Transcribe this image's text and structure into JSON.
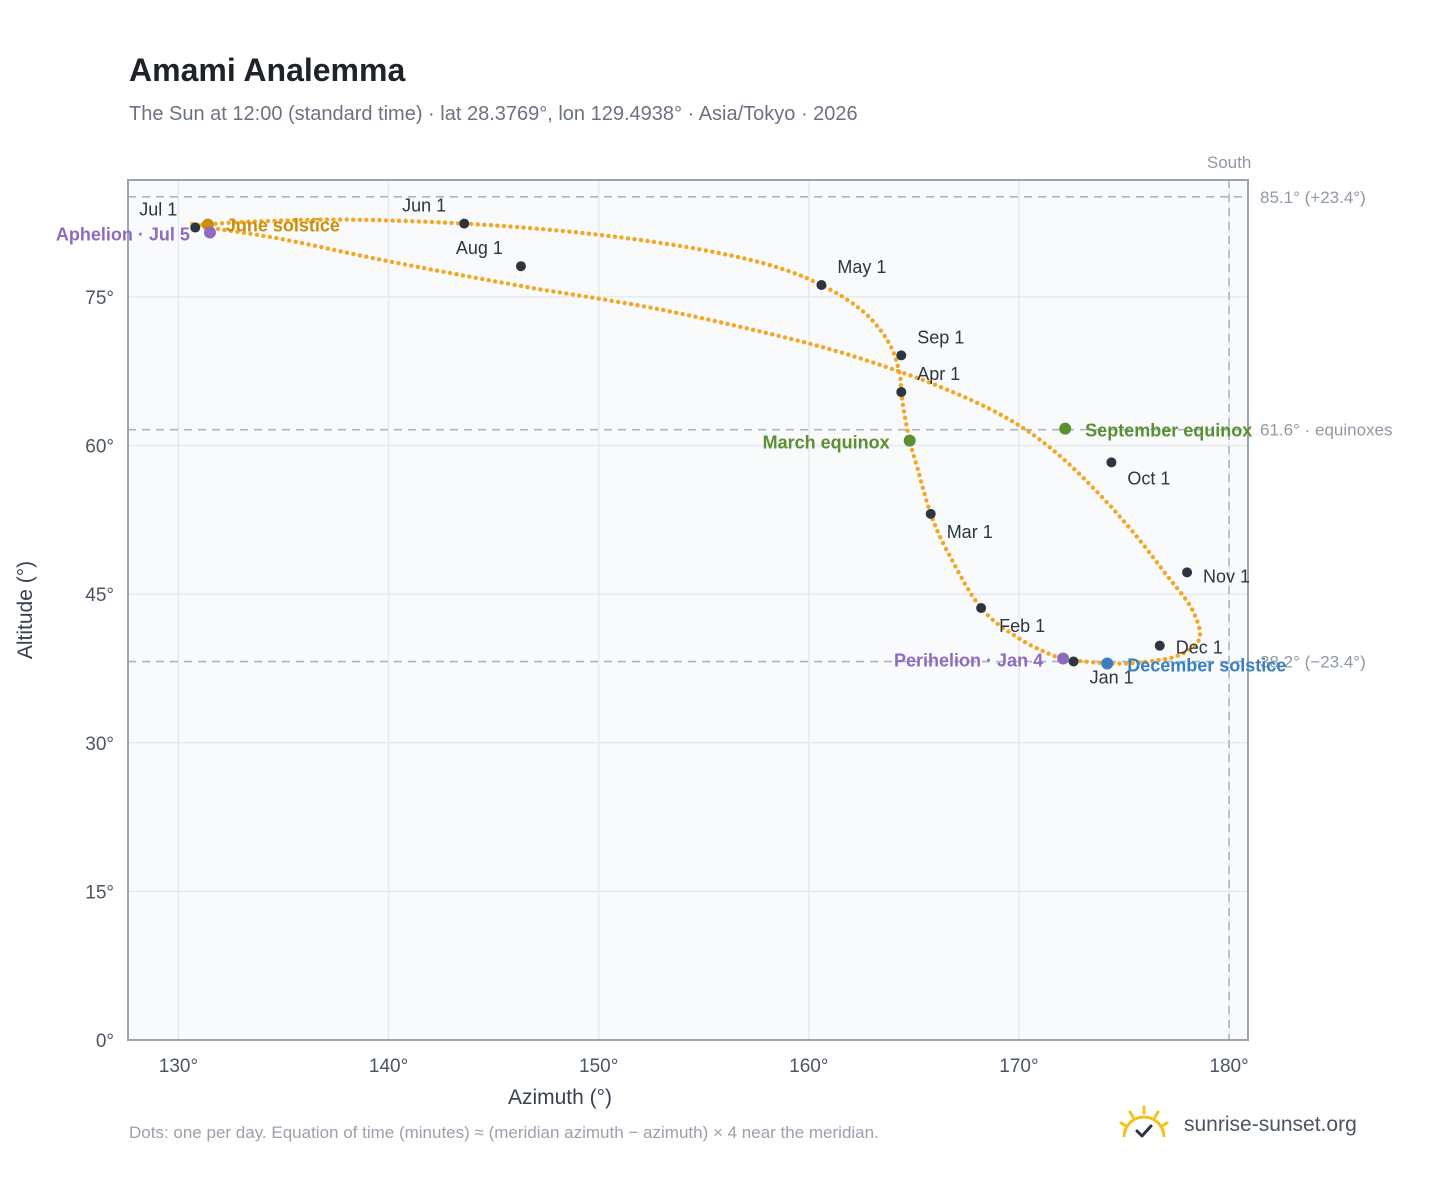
{
  "title": "Amami Analemma",
  "subtitle": "The Sun at 12:00 (standard time) · lat 28.3769°, lon 129.4938° · Asia/Tokyo · 2026",
  "footnote": "Dots: one per day. Equation of time (minutes) ≈ (meridian azimuth − azimuth) × 4 near the meridian.",
  "brand": {
    "text": "sunrise-sunset.org",
    "icon": "sun-logo-icon"
  },
  "colors": {
    "curve": "#f5a623",
    "month_dot": "#2d3640",
    "june_solstice": "#c98e0a",
    "december_solstice": "#3a7fc1",
    "equinox": "#5a8f32",
    "apsis": "#8e6bbf",
    "reference_line": "#a9b6c2",
    "grid": "#e6eaef",
    "plot_bg": "#f8fafc",
    "axis": "#9aa5b1"
  },
  "chart_data": {
    "type": "scatter",
    "xlabel": "Azimuth (°)",
    "ylabel": "Altitude (°)",
    "xlim": [
      127.6,
      180.9
    ],
    "ylim": [
      0,
      86.8
    ],
    "xticks": [
      130,
      140,
      150,
      160,
      170,
      180
    ],
    "xtick_labels": [
      "130°",
      "140°",
      "150°",
      "160°",
      "170°",
      "180°"
    ],
    "yticks": [
      0,
      15,
      30,
      45,
      60,
      75
    ],
    "ytick_labels": [
      "0°",
      "15°",
      "30°",
      "45°",
      "60°",
      "75°"
    ],
    "grid": true,
    "south_line": {
      "label": "South",
      "x": 180
    },
    "reference_lines": [
      {
        "y": 85.1,
        "label": "85.1° (+23.4°)"
      },
      {
        "y": 61.6,
        "label": "61.6° · equinoxes"
      },
      {
        "y": 38.2,
        "label": "38.2° (−23.4°)"
      }
    ],
    "series": [
      {
        "points": [
          [
            172.6,
            38.3
          ],
          [
            174.5,
            38.0
          ],
          [
            176.2,
            38.2
          ],
          [
            177.7,
            38.9
          ],
          [
            178.6,
            40.6
          ],
          [
            178.2,
            43.6
          ],
          [
            177.0,
            47.0
          ],
          [
            175.3,
            51.6
          ],
          [
            173.5,
            55.8
          ],
          [
            171.7,
            59.4
          ],
          [
            169.8,
            62.3
          ],
          [
            167.5,
            64.8
          ],
          [
            164.4,
            67.4
          ],
          [
            160.0,
            70.3
          ],
          [
            153.0,
            73.7
          ],
          [
            146.3,
            76.1
          ],
          [
            140.0,
            78.6
          ],
          [
            135.0,
            80.8
          ],
          [
            131.5,
            82.0
          ],
          [
            130.6,
            82.4
          ],
          [
            131.2,
            82.3
          ],
          [
            133.5,
            82.6
          ],
          [
            138.0,
            82.8
          ],
          [
            143.6,
            82.4
          ],
          [
            149.0,
            81.5
          ],
          [
            154.0,
            80.1
          ],
          [
            158.0,
            78.3
          ],
          [
            160.6,
            76.2
          ],
          [
            162.6,
            73.5
          ],
          [
            163.8,
            70.4
          ],
          [
            164.3,
            67.5
          ],
          [
            164.4,
            65.4
          ],
          [
            164.5,
            63.8
          ],
          [
            164.8,
            60.5
          ],
          [
            165.2,
            57.5
          ],
          [
            165.8,
            53.1
          ],
          [
            166.6,
            49.3
          ],
          [
            168.2,
            43.6
          ],
          [
            170.1,
            40.4
          ],
          [
            172.0,
            38.5
          ],
          [
            172.6,
            38.3
          ]
        ]
      }
    ],
    "month_markers": [
      {
        "label": "Jan 1",
        "x": 172.6,
        "y": 38.2
      },
      {
        "label": "Feb 1",
        "x": 168.2,
        "y": 43.6
      },
      {
        "label": "Mar 1",
        "x": 165.8,
        "y": 53.1
      },
      {
        "label": "Apr 1",
        "x": 164.4,
        "y": 65.4
      },
      {
        "label": "May 1",
        "x": 160.6,
        "y": 76.2
      },
      {
        "label": "Jun 1",
        "x": 143.6,
        "y": 82.4
      },
      {
        "label": "Jul 1",
        "x": 130.8,
        "y": 82.0
      },
      {
        "label": "Aug 1",
        "x": 146.3,
        "y": 78.1
      },
      {
        "label": "Sep 1",
        "x": 164.4,
        "y": 69.1
      },
      {
        "label": "Oct 1",
        "x": 174.4,
        "y": 58.3
      },
      {
        "label": "Nov 1",
        "x": 178.0,
        "y": 47.2
      },
      {
        "label": "Dec 1",
        "x": 176.7,
        "y": 39.8
      }
    ],
    "events": [
      {
        "label": "June solstice",
        "x": 131.4,
        "y": 82.3,
        "color": "#c98e0a"
      },
      {
        "label": "Aphelion · Jul 5",
        "x": 131.5,
        "y": 81.5,
        "color": "#8e6bbf"
      },
      {
        "label": "March equinox",
        "x": 164.8,
        "y": 60.5,
        "color": "#5a8f32"
      },
      {
        "label": "September equinox",
        "x": 172.2,
        "y": 61.7,
        "color": "#5a8f32"
      },
      {
        "label": "Perihelion · Jan 4",
        "x": 172.1,
        "y": 38.5,
        "color": "#8e6bbf"
      },
      {
        "label": "December solstice",
        "x": 174.2,
        "y": 38.0,
        "color": "#3a7fc1"
      }
    ]
  }
}
